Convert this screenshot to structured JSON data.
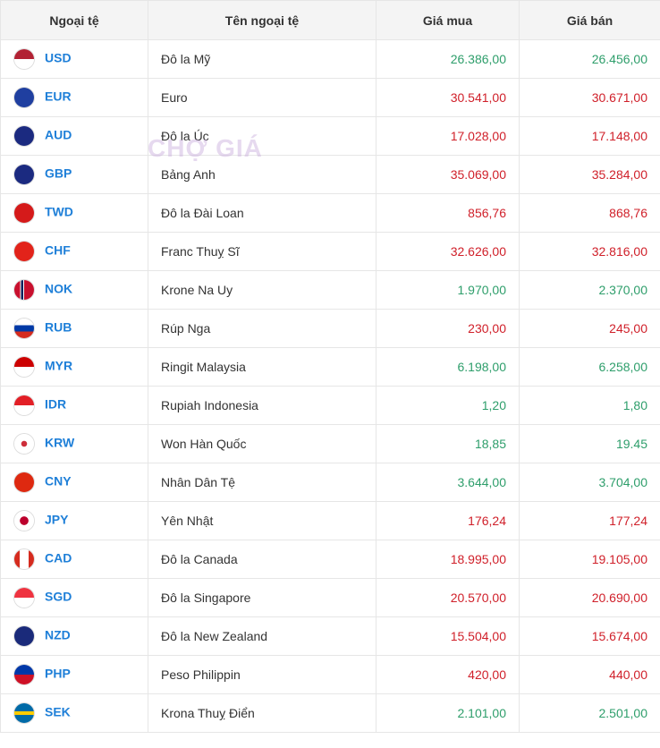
{
  "watermark": "CHỢ GIÁ",
  "table": {
    "header": [
      "Ngoại tệ",
      "Tên ngoại tệ",
      "Giá mua",
      "Giá bán"
    ],
    "rows": [
      {
        "code": "USD",
        "name": "Đô la Mỹ",
        "buy": "26.386,00",
        "sell": "26.456,00",
        "buy_color": "#2e9e6b",
        "sell_color": "#2e9e6b"
      },
      {
        "code": "EUR",
        "name": "Euro",
        "buy": "30.541,00",
        "sell": "30.671,00",
        "buy_color": "#d0202a",
        "sell_color": "#d0202a"
      },
      {
        "code": "AUD",
        "name": "Đô la Úc",
        "buy": "17.028,00",
        "sell": "17.148,00",
        "buy_color": "#d0202a",
        "sell_color": "#d0202a"
      },
      {
        "code": "GBP",
        "name": "Bảng Anh",
        "buy": "35.069,00",
        "sell": "35.284,00",
        "buy_color": "#d0202a",
        "sell_color": "#d0202a"
      },
      {
        "code": "TWD",
        "name": "Đô la Đài Loan",
        "buy": "856,76",
        "sell": "868,76",
        "buy_color": "#d0202a",
        "sell_color": "#d0202a"
      },
      {
        "code": "CHF",
        "name": "Franc Thuỵ Sĩ",
        "buy": "32.626,00",
        "sell": "32.816,00",
        "buy_color": "#d0202a",
        "sell_color": "#d0202a"
      },
      {
        "code": "NOK",
        "name": "Krone Na Uy",
        "buy": "1.970,00",
        "sell": "2.370,00",
        "buy_color": "#2e9e6b",
        "sell_color": "#2e9e6b"
      },
      {
        "code": "RUB",
        "name": "Rúp Nga",
        "buy": "230,00",
        "sell": "245,00",
        "buy_color": "#d0202a",
        "sell_color": "#d0202a"
      },
      {
        "code": "MYR",
        "name": "Ringit Malaysia",
        "buy": "6.198,00",
        "sell": "6.258,00",
        "buy_color": "#2e9e6b",
        "sell_color": "#2e9e6b"
      },
      {
        "code": "IDR",
        "name": "Rupiah Indonesia",
        "buy": "1,20",
        "sell": "1,80",
        "buy_color": "#2e9e6b",
        "sell_color": "#2e9e6b"
      },
      {
        "code": "KRW",
        "name": "Won Hàn Quốc",
        "buy": "18,85",
        "sell": "19.45",
        "buy_color": "#2e9e6b",
        "sell_color": "#2e9e6b"
      },
      {
        "code": "CNY",
        "name": "Nhân Dân Tệ",
        "buy": "3.644,00",
        "sell": "3.704,00",
        "buy_color": "#2e9e6b",
        "sell_color": "#2e9e6b"
      },
      {
        "code": "JPY",
        "name": "Yên Nhật",
        "buy": "176,24",
        "sell": "177,24",
        "buy_color": "#d0202a",
        "sell_color": "#d0202a"
      },
      {
        "code": "CAD",
        "name": "Đô la Canada",
        "buy": "18.995,00",
        "sell": "19.105,00",
        "buy_color": "#d0202a",
        "sell_color": "#d0202a"
      },
      {
        "code": "SGD",
        "name": "Đô la Singapore",
        "buy": "20.570,00",
        "sell": "20.690,00",
        "buy_color": "#d0202a",
        "sell_color": "#d0202a"
      },
      {
        "code": "NZD",
        "name": "Đô la New Zealand",
        "buy": "15.504,00",
        "sell": "15.674,00",
        "buy_color": "#d0202a",
        "sell_color": "#d0202a"
      },
      {
        "code": "PHP",
        "name": "Peso Philippin",
        "buy": "420,00",
        "sell": "440,00",
        "buy_color": "#d0202a",
        "sell_color": "#d0202a"
      },
      {
        "code": "SEK",
        "name": "Krona Thuỵ Điển",
        "buy": "2.101,00",
        "sell": "2.501,00",
        "buy_color": "#2e9e6b",
        "sell_color": "#2e9e6b"
      }
    ]
  }
}
